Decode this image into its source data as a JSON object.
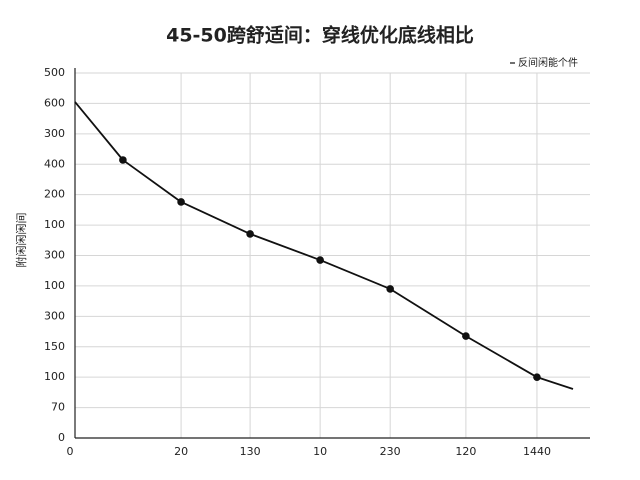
{
  "chart_data": {
    "type": "line",
    "title": "45-50跨舒适间：穿线优化底线相比",
    "y_label": "附闲闲闲间",
    "x": [
      0,
      9.3,
      20.6,
      34,
      47.6,
      61.2,
      75.9,
      89.7,
      96.7
    ],
    "series": [
      {
        "name": "反间闲能个件",
        "color": "#111111",
        "values": [
          11.05,
          9.14,
          7.76,
          6.71,
          5.85,
          4.9,
          3.35,
          2.0,
          1.61
        ]
      }
    ],
    "xlim": [
      0,
      100
    ],
    "xticks": [
      {
        "value": 0,
        "label": "0"
      },
      {
        "value": 20.6,
        "label": "20"
      },
      {
        "value": 34,
        "label": "130"
      },
      {
        "value": 47.6,
        "label": "10"
      },
      {
        "value": 61.2,
        "label": "230"
      },
      {
        "value": 75.9,
        "label": "120"
      },
      {
        "value": 89.7,
        "label": "1440"
      }
    ],
    "ylim": [
      0,
      12
    ],
    "yticks": [
      {
        "value": 0,
        "label": "0"
      },
      {
        "value": 1,
        "label": "70"
      },
      {
        "value": 2,
        "label": "100"
      },
      {
        "value": 3,
        "label": "150"
      },
      {
        "value": 4,
        "label": "300"
      },
      {
        "value": 5,
        "label": "100"
      },
      {
        "value": 6,
        "label": "300"
      },
      {
        "value": 7,
        "label": "100"
      },
      {
        "value": 8,
        "label": "200"
      },
      {
        "value": 9,
        "label": "400"
      },
      {
        "value": 10,
        "label": "300"
      },
      {
        "value": 11,
        "label": "600"
      },
      {
        "value": 12,
        "label": "500"
      }
    ],
    "grid": true,
    "legend": "top-right"
  }
}
